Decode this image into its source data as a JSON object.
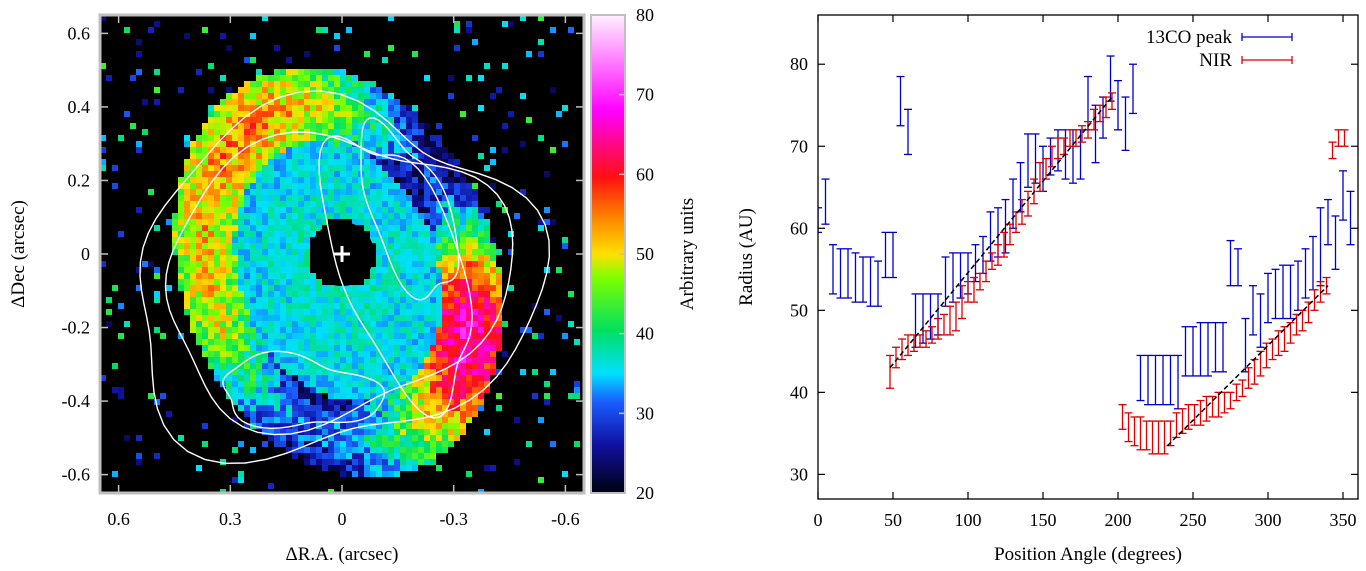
{
  "chart_data": [
    {
      "type": "heatmap",
      "xlabel": "ΔR.A. (arcsec)",
      "ylabel": "ΔDec (arcsec)",
      "xlim": [
        0.65,
        -0.65
      ],
      "ylim": [
        -0.65,
        0.65
      ],
      "x_ticks": [
        "0.6",
        "0.3",
        "0",
        "-0.3",
        "-0.6"
      ],
      "x_tick_values": [
        0.6,
        0.3,
        0,
        -0.3,
        -0.6
      ],
      "y_ticks": [
        "-0.6",
        "-0.4",
        "-0.2",
        "0",
        "0.2",
        "0.4",
        "0.6"
      ],
      "y_tick_values": [
        -0.6,
        -0.4,
        -0.2,
        0,
        0.2,
        0.4,
        0.6
      ],
      "colorbar": {
        "label": "Arbitrary units",
        "range": [
          20,
          80
        ],
        "ticks": [
          "20",
          "30",
          "40",
          "50",
          "60",
          "70",
          "80"
        ],
        "tick_values": [
          20,
          30,
          40,
          50,
          60,
          70,
          80
        ]
      },
      "star_marker": {
        "x": 0,
        "y": 0,
        "symbol": "+"
      },
      "contours": "white",
      "colors": {
        "background": "#000000",
        "contour": "#ffffff"
      }
    },
    {
      "type": "scatter",
      "xlabel": "Position Angle (degrees)",
      "ylabel": "Radius (AU)",
      "xlim": [
        0,
        360
      ],
      "ylim": [
        27,
        86
      ],
      "x_ticks": [
        "0",
        "50",
        "100",
        "150",
        "200",
        "250",
        "300",
        "350"
      ],
      "x_tick_values": [
        0,
        50,
        100,
        150,
        200,
        250,
        300,
        350
      ],
      "y_ticks": [
        "30",
        "40",
        "50",
        "60",
        "70",
        "80"
      ],
      "y_tick_values": [
        30,
        40,
        50,
        60,
        70,
        80
      ],
      "legend": "top-right",
      "series": [
        {
          "name": "13CO peak",
          "color": "#0000cc",
          "points": [
            [
              0,
              59.5,
              62.5
            ],
            [
              5,
              60.5,
              66
            ],
            [
              10,
              52,
              58
            ],
            [
              15,
              51.5,
              57.5
            ],
            [
              20,
              51.5,
              57.5
            ],
            [
              25,
              51,
              57
            ],
            [
              30,
              51,
              56.5
            ],
            [
              35,
              50.5,
              56.5
            ],
            [
              40,
              50.5,
              56
            ],
            [
              45,
              54,
              59.5
            ],
            [
              50,
              54,
              59.5
            ],
            [
              55,
              72.5,
              78.5
            ],
            [
              60,
              69,
              74.5
            ],
            [
              65,
              45.5,
              52
            ],
            [
              70,
              46,
              52
            ],
            [
              75,
              46.5,
              52
            ],
            [
              80,
              47,
              52
            ],
            [
              85,
              50.5,
              56.5
            ],
            [
              90,
              51,
              57
            ],
            [
              95,
              51.5,
              57
            ],
            [
              100,
              52,
              57
            ],
            [
              105,
              53.5,
              58
            ],
            [
              110,
              54.5,
              59
            ],
            [
              115,
              56,
              62
            ],
            [
              120,
              56.5,
              62.5
            ],
            [
              125,
              57,
              63.5
            ],
            [
              130,
              60,
              66
            ],
            [
              135,
              62,
              68
            ],
            [
              140,
              65,
              71.5
            ],
            [
              145,
              65.5,
              71.5
            ],
            [
              150,
              64.5,
              70
            ],
            [
              155,
              66.5,
              71
            ],
            [
              160,
              67,
              72
            ],
            [
              165,
              66,
              72
            ],
            [
              170,
              65.5,
              72
            ],
            [
              175,
              66,
              72
            ],
            [
              180,
              72,
              78.5
            ],
            [
              185,
              68,
              75
            ],
            [
              190,
              71,
              76
            ],
            [
              195,
              75.5,
              81
            ],
            [
              200,
              72,
              78
            ],
            [
              205,
              69.5,
              76
            ],
            [
              210,
              74,
              80
            ],
            [
              215,
              39,
              44.5
            ],
            [
              220,
              38.5,
              44.5
            ],
            [
              225,
              38.5,
              44.5
            ],
            [
              230,
              38.5,
              44.5
            ],
            [
              235,
              38.5,
              44.5
            ],
            [
              240,
              38,
              44.5
            ],
            [
              245,
              42,
              48
            ],
            [
              250,
              42,
              48
            ],
            [
              255,
              42,
              48.5
            ],
            [
              260,
              42,
              48.5
            ],
            [
              265,
              42.5,
              48.5
            ],
            [
              270,
              42.5,
              48.5
            ],
            [
              275,
              53,
              58.5
            ],
            [
              280,
              53,
              57.5
            ],
            [
              285,
              42.5,
              49
            ],
            [
              290,
              47,
              53
            ],
            [
              295,
              45.5,
              52
            ],
            [
              300,
              48.5,
              54.5
            ],
            [
              305,
              49,
              55
            ],
            [
              310,
              49,
              55.5
            ],
            [
              315,
              49,
              55.5
            ],
            [
              320,
              50,
              56
            ],
            [
              325,
              51.5,
              57.5
            ],
            [
              330,
              52.5,
              59
            ],
            [
              335,
              53,
              62.5
            ],
            [
              340,
              58,
              63.5
            ],
            [
              345,
              55,
              61.5
            ],
            [
              350,
              61,
              67
            ],
            [
              355,
              58,
              64.5
            ]
          ]
        },
        {
          "name": "NIR",
          "color": "#dd0000",
          "points": [
            [
              48,
              40.5,
              44.5
            ],
            [
              52,
              43,
              45.5
            ],
            [
              56,
              44,
              46.5
            ],
            [
              60,
              44.5,
              47
            ],
            [
              64,
              45,
              47
            ],
            [
              68,
              45.5,
              47
            ],
            [
              72,
              45.5,
              47.5
            ],
            [
              76,
              46,
              48
            ],
            [
              80,
              46.5,
              49
            ],
            [
              84,
              47,
              49.5
            ],
            [
              88,
              47,
              50.5
            ],
            [
              92,
              47.5,
              51
            ],
            [
              96,
              49,
              53
            ],
            [
              100,
              51,
              53.5
            ],
            [
              104,
              51,
              54
            ],
            [
              108,
              52.5,
              54.5
            ],
            [
              112,
              53.5,
              56
            ],
            [
              116,
              55,
              57
            ],
            [
              120,
              55.5,
              58
            ],
            [
              124,
              56.5,
              59.5
            ],
            [
              128,
              58,
              60.5
            ],
            [
              132,
              59.5,
              62
            ],
            [
              136,
              60.5,
              63.5
            ],
            [
              140,
              61.5,
              64.5
            ],
            [
              144,
              63,
              66
            ],
            [
              148,
              64.5,
              68
            ],
            [
              152,
              66,
              68.5
            ],
            [
              156,
              67.5,
              70
            ],
            [
              160,
              68.5,
              71
            ],
            [
              164,
              69,
              71
            ],
            [
              168,
              70,
              72
            ],
            [
              172,
              70,
              72
            ],
            [
              176,
              70.5,
              72.5
            ],
            [
              180,
              71,
              73
            ],
            [
              184,
              72,
              74.5
            ],
            [
              188,
              73,
              75
            ],
            [
              192,
              73.5,
              76
            ],
            [
              196,
              74.5,
              76.5
            ],
            [
              203,
              35.5,
              38.5
            ],
            [
              207,
              34,
              37.5
            ],
            [
              211,
              33.5,
              37
            ],
            [
              215,
              33,
              37
            ],
            [
              219,
              33,
              36.5
            ],
            [
              223,
              32.5,
              36.5
            ],
            [
              227,
              32.5,
              36.5
            ],
            [
              231,
              32.5,
              36.5
            ],
            [
              235,
              33.5,
              36.5
            ],
            [
              239,
              34.5,
              37.5
            ],
            [
              243,
              35,
              38
            ],
            [
              247,
              35.5,
              38.5
            ],
            [
              251,
              36,
              38.5
            ],
            [
              255,
              36,
              39
            ],
            [
              259,
              36.5,
              39.5
            ],
            [
              263,
              37,
              39.5
            ],
            [
              267,
              37,
              40
            ],
            [
              271,
              37.5,
              40
            ],
            [
              275,
              38,
              40
            ],
            [
              279,
              39,
              41
            ],
            [
              283,
              39.5,
              41.5
            ],
            [
              287,
              40.5,
              43
            ],
            [
              291,
              41,
              44
            ],
            [
              295,
              42,
              45
            ],
            [
              299,
              43,
              46
            ],
            [
              303,
              44,
              46.5
            ],
            [
              307,
              44.5,
              47.5
            ],
            [
              311,
              45,
              48
            ],
            [
              315,
              46,
              48.5
            ],
            [
              319,
              47,
              49.5
            ],
            [
              323,
              47.5,
              50
            ],
            [
              327,
              48.5,
              51
            ],
            [
              331,
              50,
              52.5
            ],
            [
              335,
              51,
              53.5
            ],
            [
              339,
              52,
              54
            ],
            [
              343,
              68.5,
              70.5
            ],
            [
              347,
              70,
              72
            ],
            [
              351,
              70,
              72
            ]
          ]
        }
      ],
      "fit_line": {
        "style": "dashed",
        "color": "#000000",
        "points": [
          [
            48,
            43
          ],
          [
            196,
            76
          ],
          [
            233,
            33.5
          ],
          [
            340,
            53
          ]
        ]
      }
    }
  ]
}
